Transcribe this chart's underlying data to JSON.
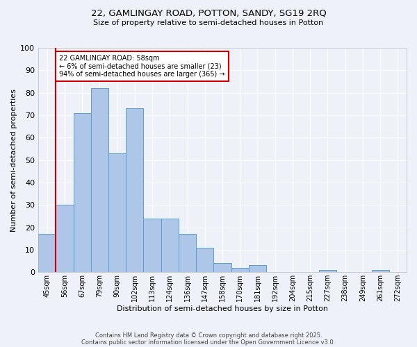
{
  "title1": "22, GAMLINGAY ROAD, POTTON, SANDY, SG19 2RQ",
  "title2": "Size of property relative to semi-detached houses in Potton",
  "xlabel": "Distribution of semi-detached houses by size in Potton",
  "ylabel": "Number of semi-detached properties",
  "categories": [
    "45sqm",
    "56sqm",
    "67sqm",
    "79sqm",
    "90sqm",
    "102sqm",
    "113sqm",
    "124sqm",
    "136sqm",
    "147sqm",
    "158sqm",
    "170sqm",
    "181sqm",
    "192sqm",
    "204sqm",
    "215sqm",
    "227sqm",
    "238sqm",
    "249sqm",
    "261sqm",
    "272sqm"
  ],
  "values": [
    17,
    30,
    71,
    82,
    53,
    73,
    24,
    24,
    17,
    11,
    4,
    2,
    3,
    0,
    0,
    0,
    1,
    0,
    0,
    1,
    0
  ],
  "bar_color": "#aec6e8",
  "bar_edge_color": "#5a9ecf",
  "highlight_line_color": "#cc0000",
  "highlight_bar_index": 1,
  "annotation_text": "22 GAMLINGAY ROAD: 58sqm\n← 6% of semi-detached houses are smaller (23)\n94% of semi-detached houses are larger (365) →",
  "annotation_box_color": "#ffffff",
  "annotation_border_color": "#cc0000",
  "ylim": [
    0,
    100
  ],
  "yticks": [
    0,
    10,
    20,
    30,
    40,
    50,
    60,
    70,
    80,
    90,
    100
  ],
  "footer1": "Contains HM Land Registry data © Crown copyright and database right 2025.",
  "footer2": "Contains public sector information licensed under the Open Government Licence v3.0.",
  "background_color": "#eef2f8",
  "grid_color": "#ffffff"
}
